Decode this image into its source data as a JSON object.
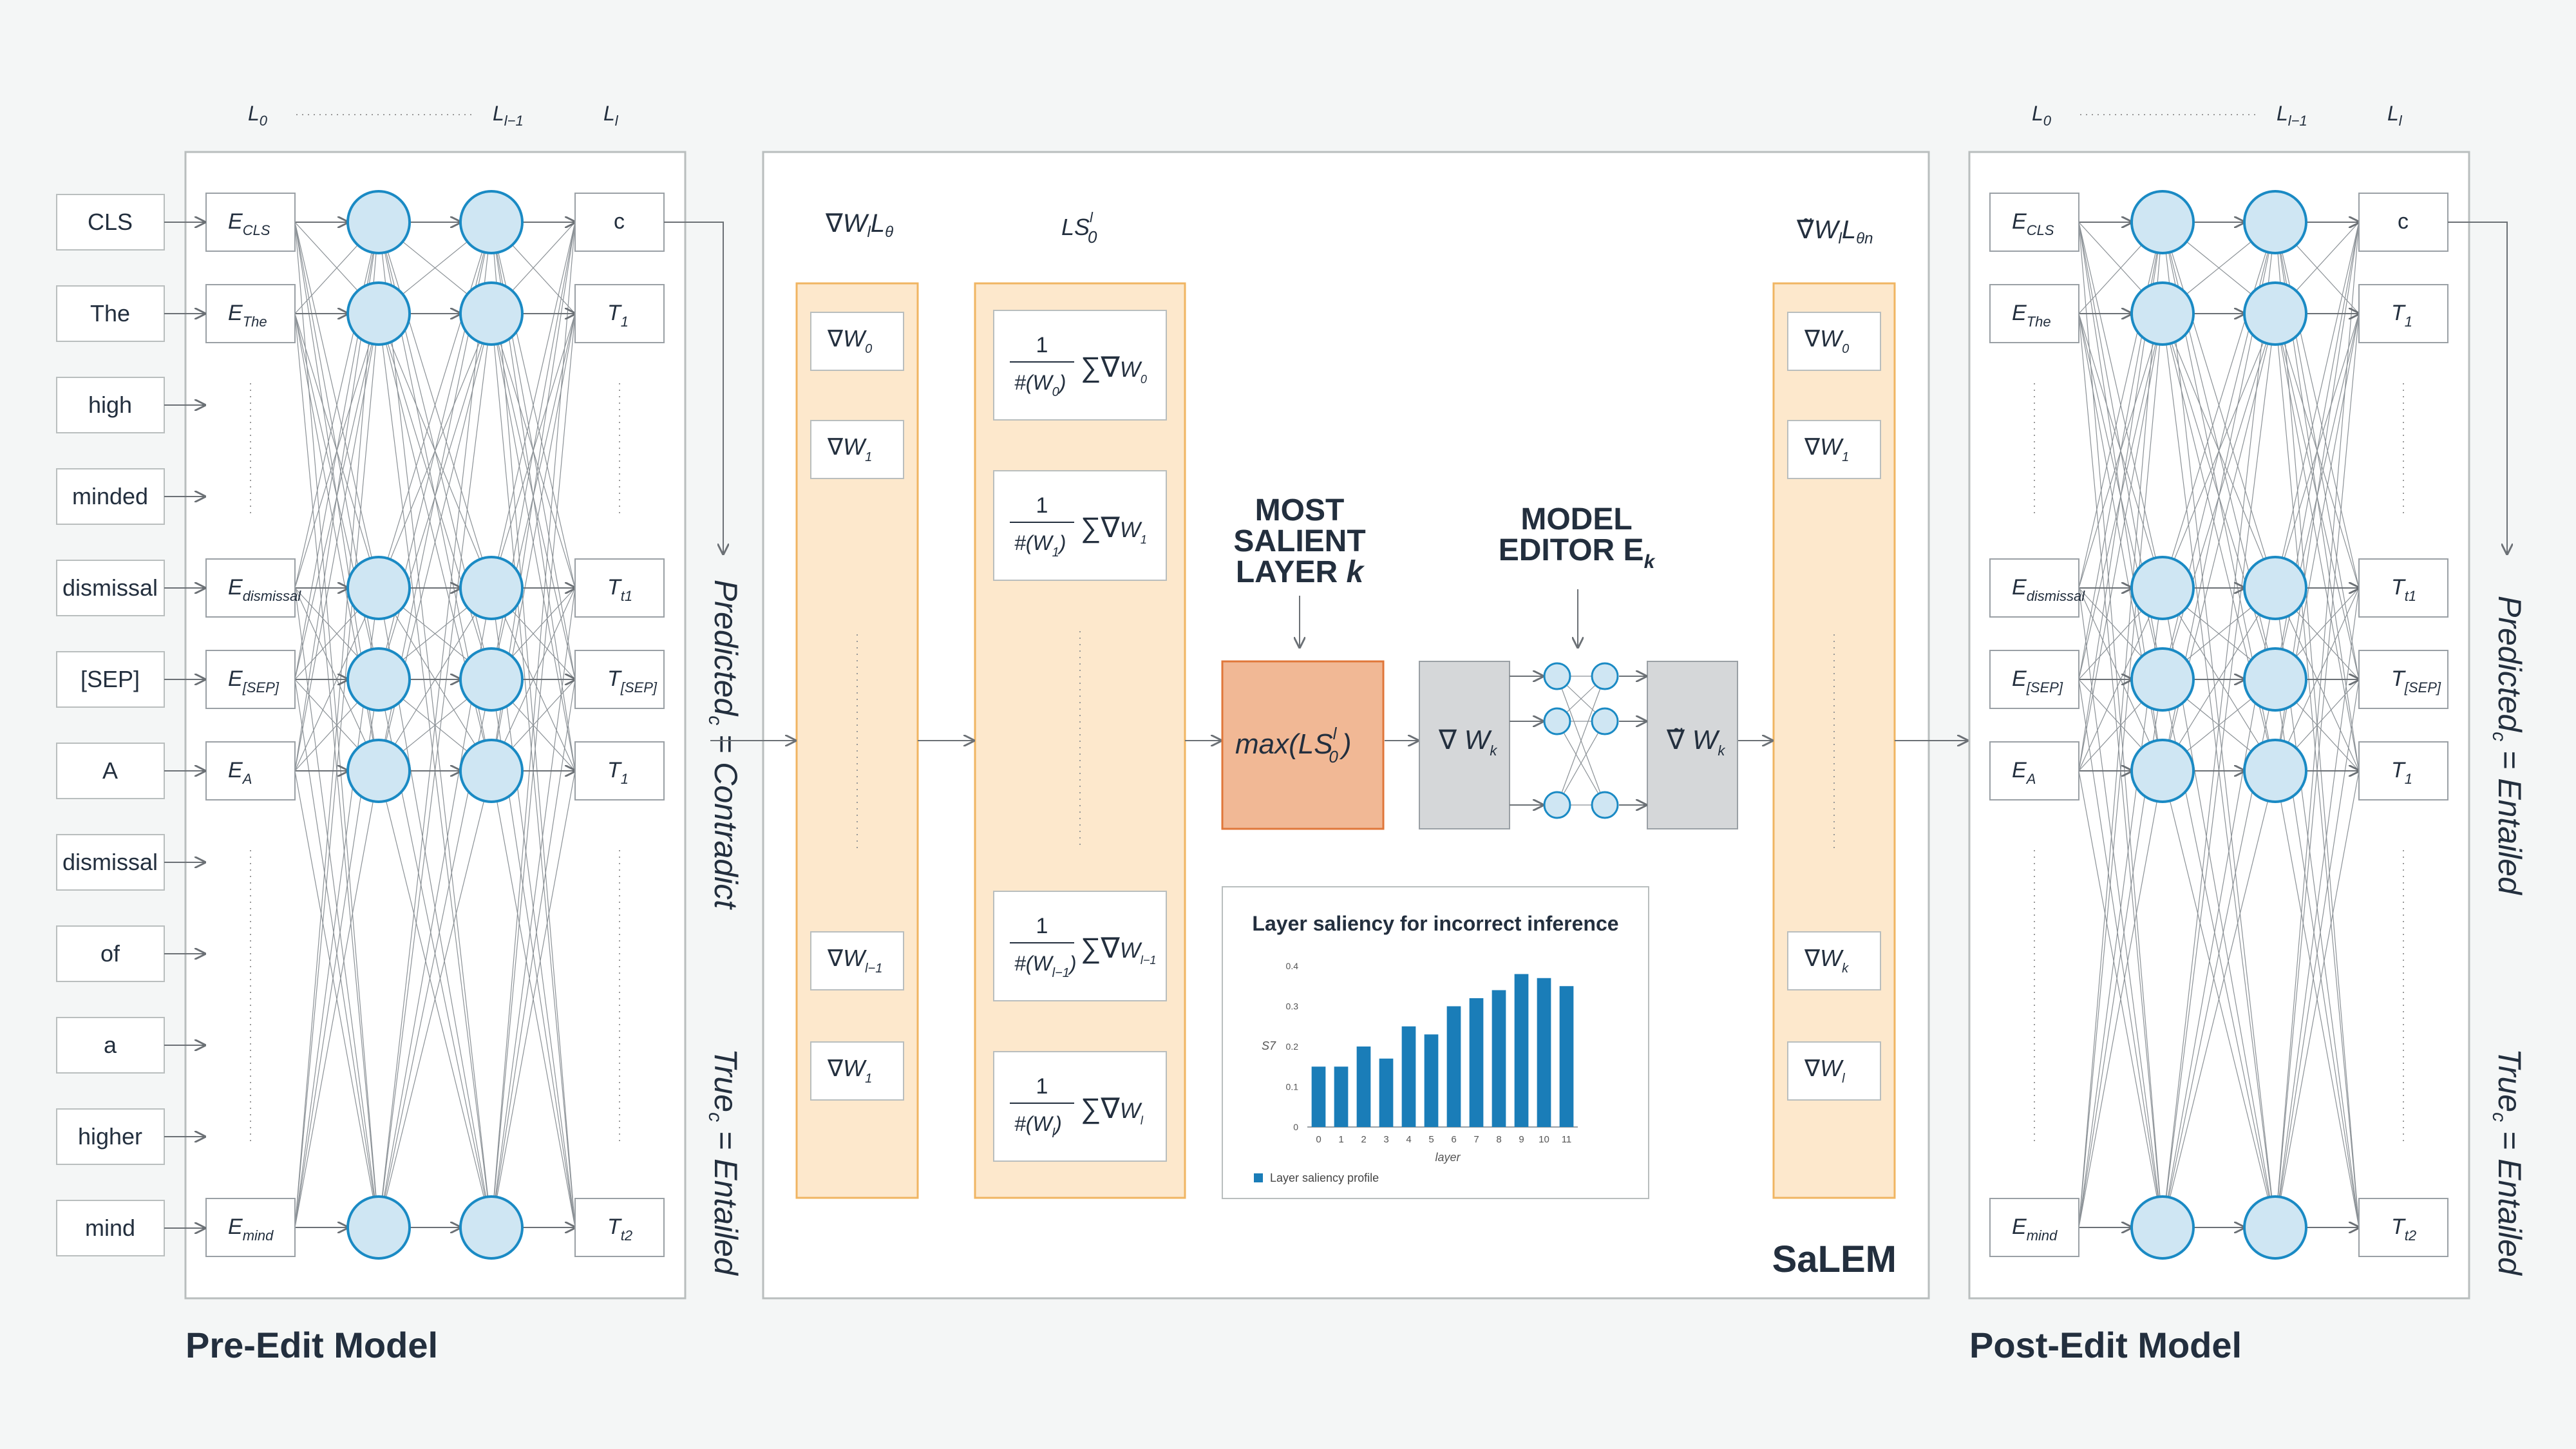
{
  "colors": {
    "background": "#f4f6f6",
    "panel_border": "#b9bebe",
    "node_fill": "#cfe6f3",
    "node_stroke": "#1a8ac4",
    "gradient_column_fill": "#fde8cc",
    "gradient_column_stroke": "#f0b562",
    "max_box_fill": "#f1b895",
    "max_box_stroke": "#e0773a",
    "grad_box_fill": "#d5d7d9",
    "bar_color": "#1a7db8",
    "text_dark": "#232f3e"
  },
  "pre_edit": {
    "title": "Pre-Edit Model",
    "layer_labels": {
      "first": "L",
      "first_sub": "0",
      "prev": "L",
      "prev_sub": "l−1",
      "last": "L",
      "last_sub": "l"
    },
    "tokens": [
      "CLS",
      "The",
      "high",
      "minded",
      "dismissal",
      "[SEP]",
      "A",
      "dismissal",
      "of",
      "a",
      "higher",
      "mind"
    ],
    "embeddings": [
      {
        "base": "E",
        "sub": "CLS"
      },
      {
        "base": "E",
        "sub": "The"
      },
      {
        "base": "E",
        "sub": "dismissal"
      },
      {
        "base": "E",
        "sub": "[SEP]"
      },
      {
        "base": "E",
        "sub": "A"
      },
      {
        "base": "E",
        "sub": "mind"
      }
    ],
    "outputs": [
      {
        "base": "c",
        "sub": ""
      },
      {
        "base": "T",
        "sub": "1"
      },
      {
        "base": "T",
        "sub": "t1"
      },
      {
        "base": "T",
        "sub": "[SEP]"
      },
      {
        "base": "T",
        "sub": "1"
      },
      {
        "base": "T",
        "sub": "t2"
      }
    ],
    "predicted": {
      "prefix": "Predicted",
      "sub": "c",
      "value": " = Contradict"
    },
    "true": {
      "prefix": "True",
      "sub": "c",
      "value": " = Entailed"
    }
  },
  "salem": {
    "title": "SaLEM",
    "grad_header": {
      "nabla": "∇",
      "w": "W",
      "w_sub": "l",
      "l": "L",
      "l_sub": "θ"
    },
    "ls_header": {
      "base": "LS",
      "sup": "l",
      "sub": "0"
    },
    "grad_items": [
      {
        "base": "W",
        "sub": "0"
      },
      {
        "base": "W",
        "sub": "1"
      },
      {
        "base": "W",
        "sub": "l−1"
      },
      {
        "base": "W",
        "sub": "1"
      }
    ],
    "ls_items": [
      {
        "num": "1",
        "den": "#(W",
        "den_sub": "0",
        "sum_sub": "0"
      },
      {
        "num": "1",
        "den": "#(W",
        "den_sub": "1",
        "sum_sub": "1"
      },
      {
        "num": "1",
        "den": "#(W",
        "den_sub": "l−1",
        "sum_sub": "l−1"
      },
      {
        "num": "1",
        "den": "#(W",
        "den_sub": "l",
        "sum_sub": "l"
      }
    ],
    "most_salient_lines": [
      "MOST",
      "SALIENT",
      "LAYER k"
    ],
    "model_editor_lines": [
      "MODEL",
      "EDITOR E",
      "k"
    ],
    "max_box": {
      "fn": "max(LS",
      "sup": "l",
      "sub": "0",
      "close": ")"
    },
    "grad_wk": {
      "nabla": "∇",
      "w": "W",
      "sub": "k"
    },
    "edited_wk": {
      "nabla": "∇̃",
      "w": "W",
      "sub": "k"
    },
    "out_header": {
      "nabla": "∇̃",
      "w": "W",
      "w_sub": "l",
      "l": "L",
      "l_sub": "θn"
    },
    "out_items": [
      {
        "base": "W",
        "sub": "0"
      },
      {
        "base": "W",
        "sub": "1"
      },
      {
        "base": "W",
        "sub": "k"
      },
      {
        "base": "W",
        "sub": "l"
      }
    ]
  },
  "chart_data": {
    "type": "bar",
    "title": "Layer saliency for incorrect inference",
    "xlabel": "layer",
    "ylabel": "S7",
    "categories": [
      "0",
      "1",
      "2",
      "3",
      "4",
      "5",
      "6",
      "7",
      "8",
      "9",
      "10",
      "11"
    ],
    "series": [
      {
        "name": "Layer saliency profile",
        "values": [
          0.15,
          0.15,
          0.2,
          0.17,
          0.25,
          0.23,
          0.3,
          0.32,
          0.34,
          0.38,
          0.37,
          0.35
        ]
      }
    ],
    "ylim": [
      0,
      0.4
    ],
    "yticks": [
      "0",
      "0.1",
      "0.2",
      "0.3",
      "0.4"
    ],
    "legend": "bottom-left"
  },
  "post_edit": {
    "title": "Post-Edit Model",
    "layer_labels": {
      "first": "L",
      "first_sub": "0",
      "prev": "L",
      "prev_sub": "l−1",
      "last": "L",
      "last_sub": "l"
    },
    "embeddings": [
      {
        "base": "E",
        "sub": "CLS"
      },
      {
        "base": "E",
        "sub": "The"
      },
      {
        "base": "E",
        "sub": "dismissal"
      },
      {
        "base": "E",
        "sub": "[SEP]"
      },
      {
        "base": "E",
        "sub": "A"
      },
      {
        "base": "E",
        "sub": "mind"
      }
    ],
    "outputs": [
      {
        "base": "c",
        "sub": ""
      },
      {
        "base": "T",
        "sub": "1"
      },
      {
        "base": "T",
        "sub": "t1"
      },
      {
        "base": "T",
        "sub": "[SEP]"
      },
      {
        "base": "T",
        "sub": "1"
      },
      {
        "base": "T",
        "sub": "t2"
      }
    ],
    "predicted": {
      "prefix": "Predicted",
      "sub": "c",
      "value": " = Entailed"
    },
    "true": {
      "prefix": "True",
      "sub": "c",
      "value": " = Entailed"
    }
  }
}
